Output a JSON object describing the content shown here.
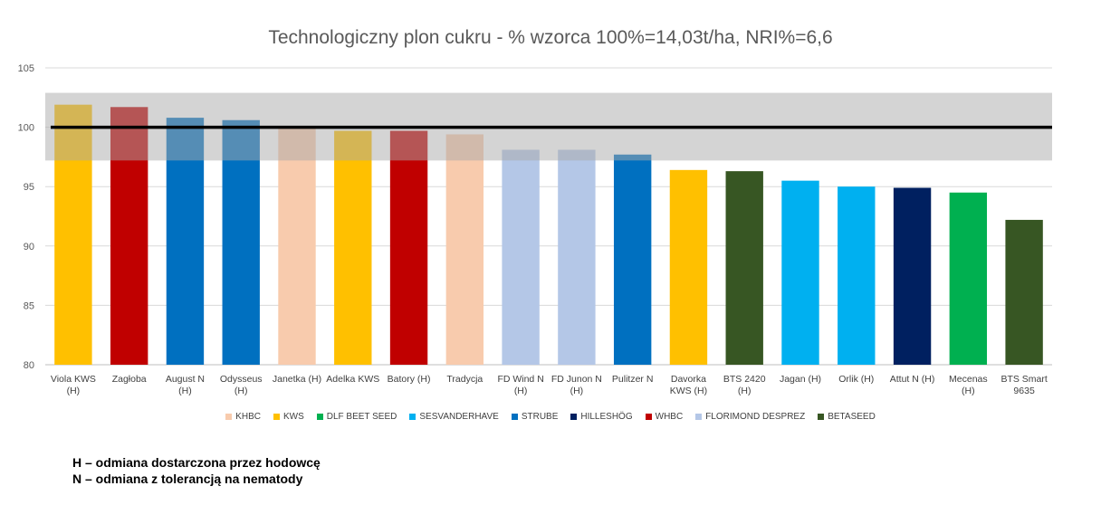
{
  "chart_data": {
    "type": "bar",
    "title": "Technologiczny plon cukru - % wzorca 100%=14,03t/ha, NRI%=6,6",
    "xlabel": "",
    "ylabel": "",
    "ylim": [
      80,
      105
    ],
    "yticks": [
      80,
      85,
      90,
      95,
      100,
      105
    ],
    "grid": true,
    "reference_line": 100,
    "shaded_band": [
      97.2,
      102.9
    ],
    "legend_position": "bottom",
    "categories": [
      [
        "Viola KWS",
        "(H)"
      ],
      [
        "Zagłoba"
      ],
      [
        "August N",
        "(H)"
      ],
      [
        "Odysseus",
        "(H)"
      ],
      [
        "Janetka (H)"
      ],
      [
        "Adelka KWS"
      ],
      [
        "Batory (H)"
      ],
      [
        "Tradycja"
      ],
      [
        "FD Wind  N",
        "(H)"
      ],
      [
        "FD Junon  N",
        "(H)"
      ],
      [
        "Pulitzer  N"
      ],
      [
        "Davorka",
        "KWS (H)"
      ],
      [
        "BTS 2420",
        "(H)"
      ],
      [
        "Jagan (H)"
      ],
      [
        "Orlik (H)"
      ],
      [
        "Attut  N (H)"
      ],
      [
        "Mecenas",
        "(H)"
      ],
      [
        "BTS Smart",
        "9635"
      ]
    ],
    "values": [
      101.9,
      101.7,
      100.8,
      100.6,
      100.0,
      99.7,
      99.7,
      99.4,
      98.1,
      98.1,
      97.7,
      96.4,
      96.3,
      95.5,
      95.0,
      94.9,
      94.5,
      92.2
    ],
    "breeders": [
      "KWS",
      "WHBC",
      "STRUBE",
      "STRUBE",
      "KHBC",
      "KWS",
      "WHBC",
      "KHBC",
      "FLORIMOND DESPREZ",
      "FLORIMOND DESPREZ",
      "STRUBE",
      "KWS",
      "BETASEED",
      "SESVANDERHAVE",
      "SESVANDERHAVE",
      "HILLESHÖG",
      "DLF BEET SEED",
      "BETASEED"
    ],
    "legend": [
      {
        "name": "KHBC",
        "color": "#f8cbad"
      },
      {
        "name": "KWS",
        "color": "#ffc000"
      },
      {
        "name": "DLF BEET SEED",
        "color": "#00b050"
      },
      {
        "name": "SESVANDERHAVE",
        "color": "#00b0f0"
      },
      {
        "name": "STRUBE",
        "color": "#0070c0"
      },
      {
        "name": "HILLESHÖG",
        "color": "#002060"
      },
      {
        "name": "WHBC",
        "color": "#c00000"
      },
      {
        "name": "FLORIMOND DESPREZ",
        "color": "#b4c7e7"
      },
      {
        "name": "BETASEED",
        "color": "#375623"
      }
    ]
  },
  "notes": [
    "H – odmiana dostarczona przez hodowcę",
    "N – odmiana z tolerancją na nematody"
  ]
}
